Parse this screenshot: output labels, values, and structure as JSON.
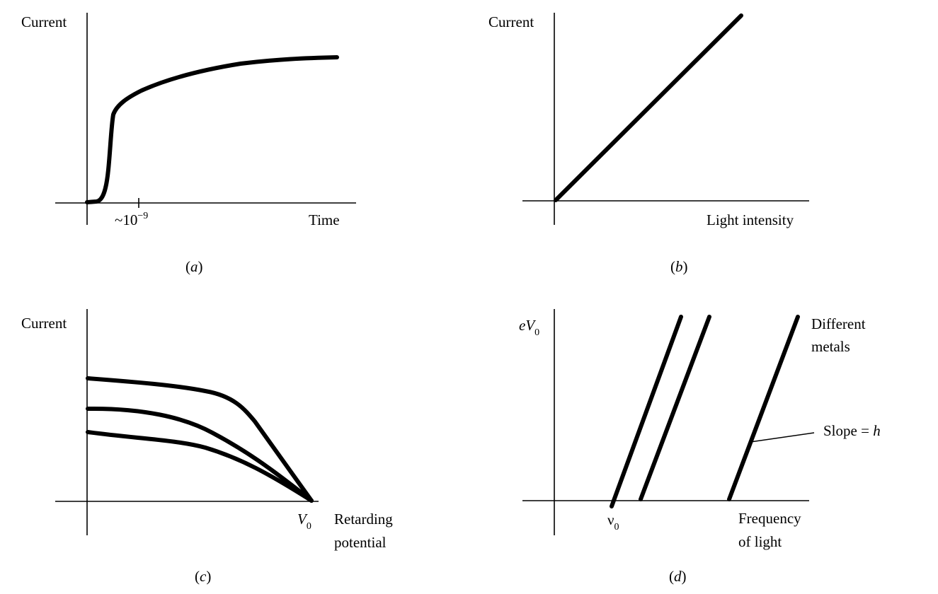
{
  "panel_a": {
    "ylabel": "Current",
    "xlabel": "Time",
    "tick_label": "~10",
    "tick_exp": "−9",
    "caption_pre": "(",
    "caption_letter": "a",
    "caption_post": ")"
  },
  "panel_b": {
    "ylabel": "Current",
    "xlabel": "Light intensity",
    "caption_pre": "(",
    "caption_letter": "b",
    "caption_post": ")"
  },
  "panel_c": {
    "ylabel": "Current",
    "x_marker": "V",
    "x_marker_sub": "0",
    "xlabel_line1": "Retarding",
    "xlabel_line2": "potential",
    "caption_pre": "(",
    "caption_letter": "c",
    "caption_post": ")"
  },
  "panel_d": {
    "ylabel_e": "eV",
    "ylabel_sub": "0",
    "x_marker": "ν",
    "x_marker_sub": "0",
    "xlabel_line1": "Frequency",
    "xlabel_line2": "of light",
    "legend_line1": "Different",
    "legend_line2": "metals",
    "slope_text": "Slope = ",
    "slope_var": "h",
    "caption_pre": "(",
    "caption_letter": "d",
    "caption_post": ")"
  },
  "chart_data": [
    {
      "type": "line",
      "panel": "a",
      "xlabel": "Time",
      "ylabel": "Current",
      "tick_labels": [
        "~10^-9"
      ],
      "x": [
        0,
        0.1,
        0.2,
        0.3,
        0.45,
        0.6,
        0.8,
        1.0,
        1.5,
        2.0,
        2.5,
        3.0,
        3.5,
        4.0,
        4.5,
        5.0
      ],
      "y": [
        0,
        0.02,
        0.15,
        0.45,
        0.58,
        0.62,
        0.66,
        0.69,
        0.74,
        0.78,
        0.81,
        0.83,
        0.845,
        0.855,
        0.86,
        0.865
      ]
    },
    {
      "type": "line",
      "panel": "b",
      "xlabel": "Light intensity",
      "ylabel": "Current",
      "x": [
        0,
        1
      ],
      "y": [
        0,
        1
      ]
    },
    {
      "type": "line",
      "panel": "c",
      "xlabel": "Retarding potential",
      "ylabel": "Current",
      "x_marker": "V0",
      "x": [
        0,
        0.25,
        0.5,
        0.65,
        0.8,
        0.9,
        1.0
      ],
      "series": [
        {
          "values": [
            0.67,
            0.655,
            0.63,
            0.6,
            0.45,
            0.22,
            0
          ]
        },
        {
          "values": [
            0.51,
            0.5,
            0.46,
            0.4,
            0.28,
            0.14,
            0
          ]
        },
        {
          "values": [
            0.38,
            0.36,
            0.33,
            0.29,
            0.2,
            0.1,
            0
          ]
        }
      ]
    },
    {
      "type": "line",
      "panel": "d",
      "xlabel": "Frequency of light",
      "ylabel": "eV0",
      "x_marker": "ν0",
      "annotations": [
        "Different metals",
        "Slope = h"
      ],
      "series": [
        {
          "x": [
            1.0,
            2.5
          ],
          "values": [
            0,
            1
          ]
        },
        {
          "x": [
            1.5,
            2.9
          ],
          "values": [
            0,
            1
          ]
        },
        {
          "x": [
            3.0,
            4.4
          ],
          "values": [
            0,
            1
          ]
        }
      ]
    }
  ]
}
